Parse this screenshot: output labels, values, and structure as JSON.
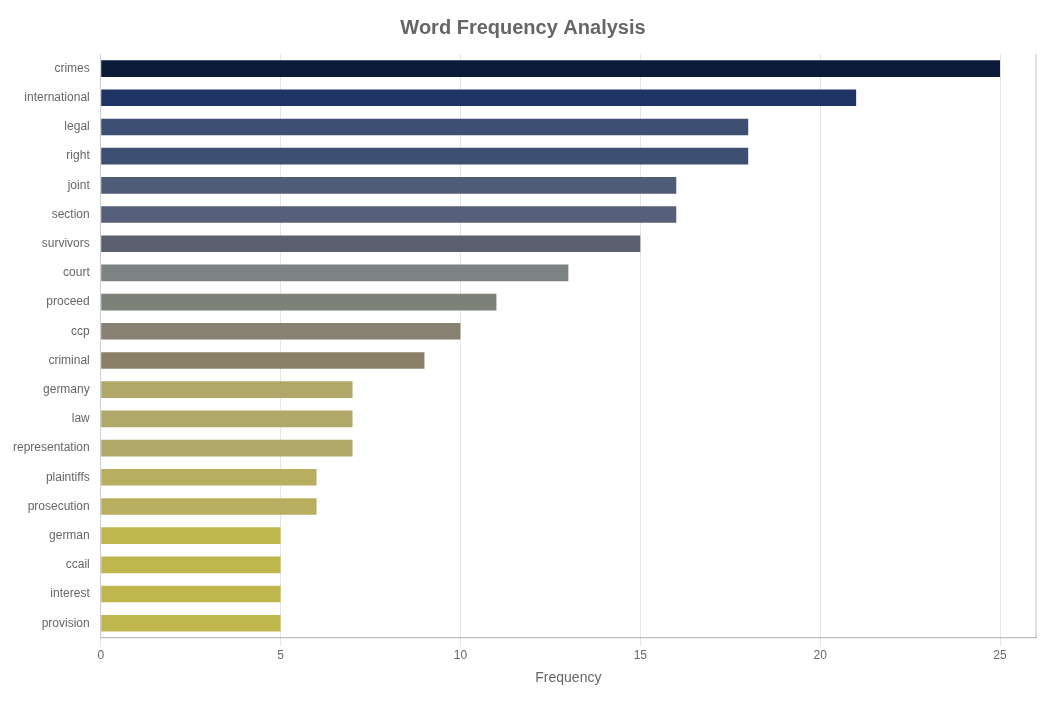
{
  "chart_data": {
    "type": "bar",
    "orientation": "horizontal",
    "title": "Word Frequency Analysis",
    "xlabel": "Frequency",
    "categories": [
      "crimes",
      "international",
      "legal",
      "right",
      "joint",
      "section",
      "survivors",
      "court",
      "proceed",
      "ccp",
      "criminal",
      "germany",
      "law",
      "representation",
      "plaintiffs",
      "prosecution",
      "german",
      "ccail",
      "interest",
      "provision"
    ],
    "values": [
      25,
      21,
      18,
      18,
      16,
      16,
      15,
      13,
      11,
      10,
      9,
      7,
      7,
      7,
      6,
      6,
      5,
      5,
      5,
      5
    ],
    "colors": [
      "#0c1b3a",
      "#1f3464",
      "#3d4f72",
      "#3d4f72",
      "#4f5c78",
      "#565f7a",
      "#5a6070",
      "#7d8282",
      "#7d8278",
      "#888070",
      "#8a8068",
      "#b0a868",
      "#b0a868",
      "#b0a868",
      "#b8ae60",
      "#b8ae60",
      "#c0b64e",
      "#c0b64e",
      "#c0b64e",
      "#c0b64e"
    ],
    "xlim": [
      0,
      26
    ],
    "xticks": [
      0,
      5,
      10,
      15,
      20,
      25
    ],
    "grid": true
  }
}
